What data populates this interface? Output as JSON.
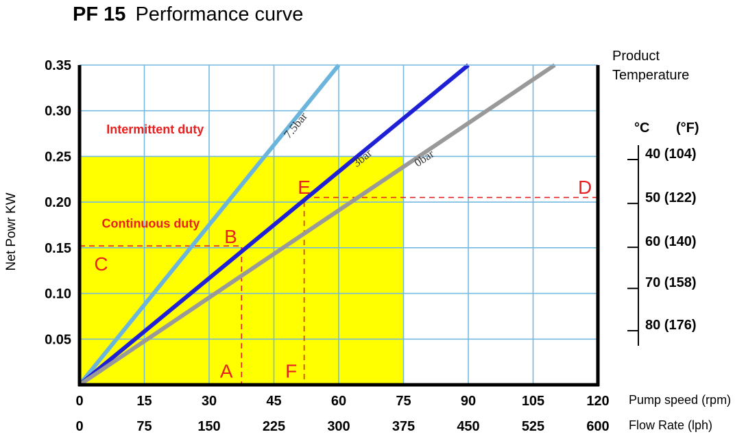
{
  "title": {
    "model": "PF 15",
    "text": "Performance curve"
  },
  "chart_data": {
    "type": "line",
    "title": "PF 15 Performance curve",
    "ylabel": "Net Powr KW",
    "ylim": [
      0,
      0.35
    ],
    "yticks": [
      0.05,
      0.1,
      0.15,
      0.2,
      0.25,
      0.3,
      0.35
    ],
    "ytick_labels": [
      "0.05",
      "0.10",
      "0.15",
      "0.20",
      "0.25",
      "0.30",
      "0.35"
    ],
    "xlim": [
      0,
      120
    ],
    "x_axes": [
      {
        "label": "Pump speed  (rpm)",
        "ticks": [
          0,
          15,
          30,
          45,
          60,
          75,
          90,
          105,
          120
        ],
        "tick_labels": [
          "0",
          "15",
          "30",
          "45",
          "60",
          "75",
          "90",
          "105",
          "120"
        ]
      },
      {
        "label": "Flow Rate   (lph)",
        "ticks": [
          0,
          75,
          150,
          225,
          300,
          375,
          450,
          525,
          600
        ],
        "tick_labels": [
          "0",
          "75",
          "150",
          "225",
          "300",
          "375",
          "450",
          "525",
          "600"
        ]
      }
    ],
    "grid": true,
    "series": [
      {
        "name": "7.5bar",
        "color": "#6bb5dc",
        "x": [
          0,
          60
        ],
        "y": [
          0,
          0.35
        ]
      },
      {
        "name": "3bar",
        "color": "#1f1fd6",
        "x": [
          0,
          90
        ],
        "y": [
          0,
          0.35
        ]
      },
      {
        "name": "0bar",
        "color": "#999999",
        "x": [
          0,
          110
        ],
        "y": [
          0,
          0.35
        ]
      }
    ],
    "regions": [
      {
        "label": "Continuous duty",
        "x": [
          0,
          75
        ],
        "y": [
          0,
          0.25
        ],
        "color": "#ffff00"
      },
      {
        "label": "Intermittent duty",
        "x": [
          0,
          120
        ],
        "y": [
          0.25,
          0.35
        ],
        "color": "#ffffff"
      }
    ],
    "guide_lines": [
      {
        "color": "#e8201f",
        "points": [
          [
            0,
            0.152
          ],
          [
            37.5,
            0.152
          ],
          [
            37.5,
            0
          ]
        ]
      },
      {
        "color": "#e8201f",
        "points": [
          [
            120,
            0.205
          ],
          [
            52,
            0.205
          ],
          [
            52,
            0
          ]
        ]
      }
    ],
    "annotations": [
      {
        "text": "A",
        "x": 34,
        "y": 0.008
      },
      {
        "text": "B",
        "x": 35,
        "y": 0.155
      },
      {
        "text": "C",
        "x": 5,
        "y": 0.125
      },
      {
        "text": "D",
        "x": 117,
        "y": 0.209
      },
      {
        "text": "E",
        "x": 52,
        "y": 0.209
      },
      {
        "text": "F",
        "x": 49,
        "y": 0.008
      }
    ],
    "region_labels": [
      {
        "text": "Intermittent duty",
        "x": 17.5,
        "y": 0.275
      },
      {
        "text": "Continuous duty",
        "x": 16.5,
        "y": 0.172
      }
    ]
  },
  "temperature_scale": {
    "title_line1": "Product",
    "title_line2": "Temperature",
    "unit_c": "°C",
    "unit_f": "(°F)",
    "ticks": [
      {
        "label": "40 (104)",
        "y": 0.25
      },
      {
        "label": "50 (122)",
        "y": 0.2
      },
      {
        "label": "60 (140)",
        "y": 0.152
      },
      {
        "label": "70 (158)",
        "y": 0.107
      },
      {
        "label": "80 (176)",
        "y": 0.065
      }
    ]
  }
}
